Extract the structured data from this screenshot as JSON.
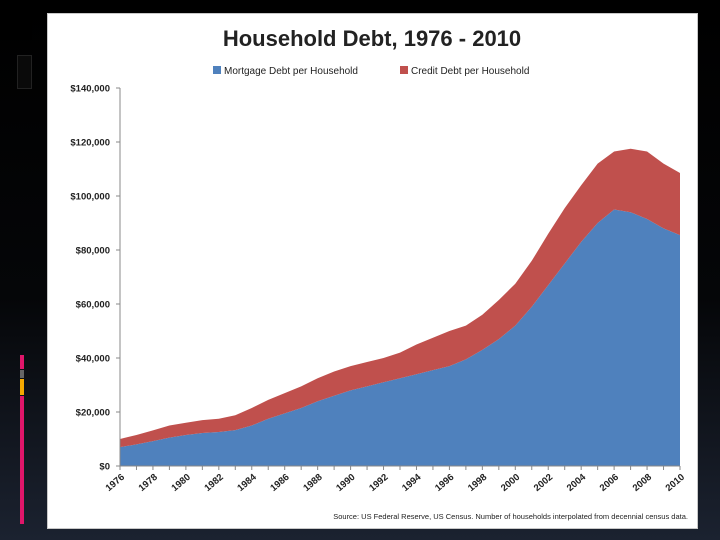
{
  "slide": {
    "background": "#000000",
    "accent_colors": [
      "#e0166a",
      "#f5a800",
      "#3a8ad8",
      "#666666"
    ]
  },
  "chart_data": {
    "type": "area",
    "stacked": true,
    "title": "Household Debt, 1976 - 2010",
    "xlabel": "",
    "ylabel": "",
    "x": [
      1976,
      1977,
      1978,
      1979,
      1980,
      1981,
      1982,
      1983,
      1984,
      1985,
      1986,
      1987,
      1988,
      1989,
      1990,
      1991,
      1992,
      1993,
      1994,
      1995,
      1996,
      1997,
      1998,
      1999,
      2000,
      2001,
      2002,
      2003,
      2004,
      2005,
      2006,
      2007,
      2008,
      2009,
      2010
    ],
    "x_tick_labels": [
      "1976",
      "1978",
      "1980",
      "1982",
      "1984",
      "1986",
      "1988",
      "1990",
      "1992",
      "1994",
      "1996",
      "1998",
      "2000",
      "2002",
      "2004",
      "2006",
      "2008",
      "2010"
    ],
    "ylim": [
      0,
      140000
    ],
    "y_tick_labels": [
      "$0",
      "$20,000",
      "$40,000",
      "$60,000",
      "$80,000",
      "$100,000",
      "$120,000",
      "$140,000"
    ],
    "grid": false,
    "legend_position": "top",
    "series": [
      {
        "name": "Mortgage Debt per Household",
        "color": "#4f81bd",
        "values": [
          7000,
          8000,
          9200,
          10500,
          11500,
          12200,
          12600,
          13300,
          15000,
          17500,
          19500,
          21500,
          24000,
          26000,
          28000,
          29500,
          31000,
          32500,
          34000,
          35500,
          37000,
          39500,
          43000,
          47000,
          52000,
          59000,
          67000,
          75000,
          83000,
          90000,
          95000,
          94000,
          91500,
          88000,
          85500
        ]
      },
      {
        "name": "Credit Debt per Household",
        "color": "#c0504d",
        "values": [
          3000,
          3500,
          4000,
          4500,
          4500,
          4800,
          4900,
          5500,
          6500,
          7000,
          7500,
          8000,
          8500,
          9000,
          9000,
          9000,
          9000,
          9500,
          11000,
          12000,
          13000,
          12500,
          13000,
          14500,
          15500,
          17000,
          19000,
          20500,
          21000,
          22000,
          21500,
          23500,
          25000,
          24000,
          23000
        ]
      }
    ],
    "source_note": "Source:  US Federal Reserve, US Census.  Number of households interpolated from decennial census data."
  }
}
